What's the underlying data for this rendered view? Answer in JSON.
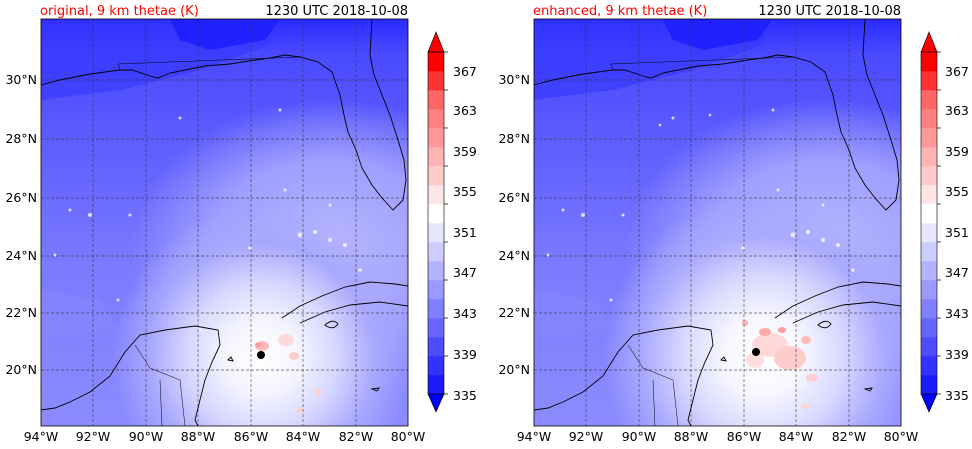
{
  "panels": [
    {
      "id": "original",
      "title_left": "original, 9 km thetae (K)",
      "title_right": "1230 UTC 2018-10-08",
      "center_marker": {
        "lon": -85.6,
        "lat": 20.5
      }
    },
    {
      "id": "enhanced",
      "title_left": "enhanced, 9 km thetae (K)",
      "title_right": "1230 UTC 2018-10-08",
      "center_marker": {
        "lon": -85.5,
        "lat": 20.65
      }
    }
  ],
  "map": {
    "lon_range": [
      -94,
      -80
    ],
    "lat_range": [
      18.2,
      32
    ],
    "lon_ticks": [
      "94°W",
      "92°W",
      "90°W",
      "88°W",
      "86°W",
      "84°W",
      "82°W",
      "80°W"
    ],
    "lat_ticks": [
      "20°N",
      "22°N",
      "24°N",
      "26°N",
      "28°N",
      "30°N"
    ],
    "lon_tick_values": [
      -94,
      -92,
      -90,
      -88,
      -86,
      -84,
      -82,
      -80
    ],
    "lat_tick_values": [
      20,
      22,
      24,
      26,
      28,
      30
    ],
    "grid": true
  },
  "colorbar": {
    "tick_labels": [
      "335",
      "339",
      "343",
      "347",
      "351",
      "355",
      "359",
      "363",
      "367"
    ],
    "levels": [
      335,
      337,
      339,
      341,
      343,
      345,
      347,
      349,
      351,
      353,
      355,
      357,
      359,
      361,
      363,
      365,
      367,
      369
    ],
    "colors": [
      "#1a1aff",
      "#3333ff",
      "#4d4dff",
      "#6666ff",
      "#8080ff",
      "#9999ff",
      "#b3b3ff",
      "#ccccff",
      "#e6e6ff",
      "#ffffff",
      "#ffe6e6",
      "#ffcccc",
      "#ffb3b3",
      "#ff9999",
      "#ff8080",
      "#ff6666",
      "#ff3333",
      "#ff0000"
    ],
    "extend": "both",
    "under_color": "#0000ff",
    "over_color": "#ff0000"
  }
}
